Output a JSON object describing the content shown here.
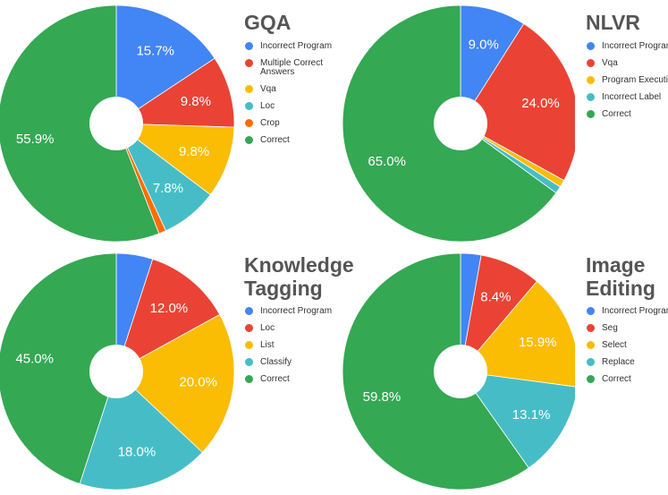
{
  "colors": {
    "blue": "#4285F4",
    "red": "#EA4335",
    "yellow": "#FBBC04",
    "teal": "#46BDC6",
    "orange": "#FF6D01",
    "green": "#34A853"
  },
  "chart_data": [
    {
      "type": "pie",
      "title": "GQA",
      "legend_placement": "right",
      "series": [
        {
          "name": "Incorrect Program",
          "value": 15.7,
          "label": "15.7%",
          "color": "#4285F4"
        },
        {
          "name": "Multiple Correct Answers",
          "value": 9.8,
          "label": "9.8%",
          "color": "#EA4335"
        },
        {
          "name": "Vqa",
          "value": 9.8,
          "label": "9.8%",
          "color": "#FBBC04"
        },
        {
          "name": "Loc",
          "value": 7.8,
          "label": "7.8%",
          "color": "#46BDC6"
        },
        {
          "name": "Crop",
          "value": 1.0,
          "label": "",
          "color": "#FF6D01"
        },
        {
          "name": "Correct",
          "value": 55.9,
          "label": "55.9%",
          "color": "#34A853"
        }
      ]
    },
    {
      "type": "pie",
      "title": "NLVR",
      "legend_placement": "right",
      "series": [
        {
          "name": "Incorrect Program",
          "value": 9.0,
          "label": "9.0%",
          "color": "#4285F4"
        },
        {
          "name": "Vqa",
          "value": 24.0,
          "label": "24.0%",
          "color": "#EA4335"
        },
        {
          "name": "Program Execution",
          "value": 1.0,
          "label": "",
          "color": "#FBBC04"
        },
        {
          "name": "Incorrect Label",
          "value": 1.0,
          "label": "",
          "color": "#46BDC6"
        },
        {
          "name": "Correct",
          "value": 65.0,
          "label": "65.0%",
          "color": "#34A853"
        }
      ]
    },
    {
      "type": "pie",
      "title": "Knowledge Tagging",
      "legend_placement": "right",
      "series": [
        {
          "name": "Incorrect Program",
          "value": 5.0,
          "label": "",
          "color": "#4285F4"
        },
        {
          "name": "Loc",
          "value": 12.0,
          "label": "12.0%",
          "color": "#EA4335"
        },
        {
          "name": "List",
          "value": 20.0,
          "label": "20.0%",
          "color": "#FBBC04"
        },
        {
          "name": "Classify",
          "value": 18.0,
          "label": "18.0%",
          "color": "#46BDC6"
        },
        {
          "name": "Correct",
          "value": 45.0,
          "label": "45.0%",
          "color": "#34A853"
        }
      ]
    },
    {
      "type": "pie",
      "title": "Image Editing",
      "legend_placement": "right",
      "series": [
        {
          "name": "Incorrect Program",
          "value": 2.8,
          "label": "",
          "color": "#4285F4"
        },
        {
          "name": "Seg",
          "value": 8.4,
          "label": "8.4%",
          "color": "#EA4335"
        },
        {
          "name": "Select",
          "value": 15.9,
          "label": "15.9%",
          "color": "#FBBC04"
        },
        {
          "name": "Replace",
          "value": 13.1,
          "label": "13.1%",
          "color": "#46BDC6"
        },
        {
          "name": "Correct",
          "value": 59.8,
          "label": "59.8%",
          "color": "#34A853"
        }
      ]
    }
  ]
}
